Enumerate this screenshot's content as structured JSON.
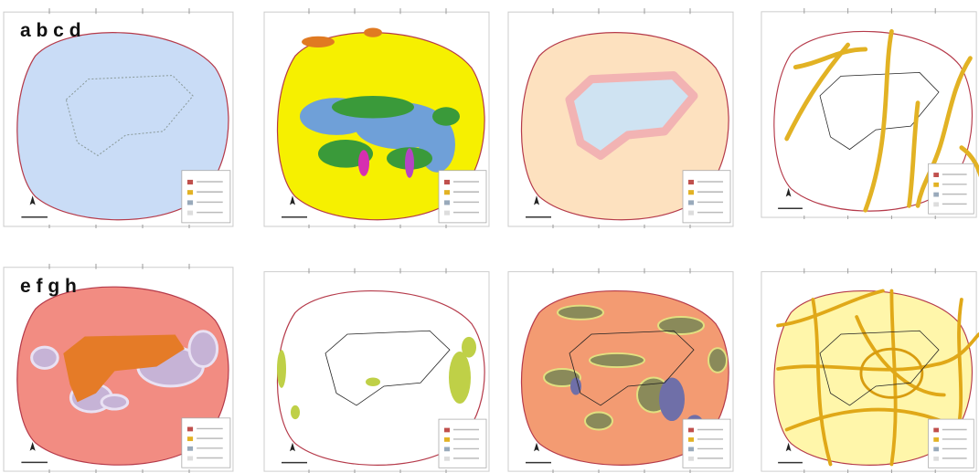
{
  "labels": [
    "a b c d",
    "e f g h"
  ]
}
